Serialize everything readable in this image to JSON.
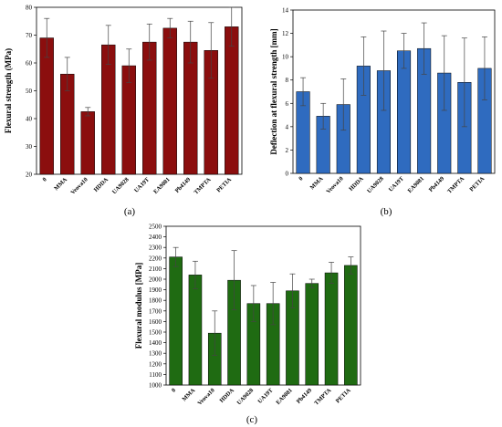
{
  "chart_data": [
    {
      "type": "bar",
      "panel_label": "(a)",
      "categories": [
        "0",
        "MMA",
        "Veova10",
        "HDDA",
        "UA9028",
        "UA19T",
        "EA9081",
        "Pb4149",
        "TMPTA",
        "PETIA"
      ],
      "values": [
        69,
        56,
        42.5,
        66.5,
        59,
        67.5,
        72.5,
        67.5,
        64.5,
        73
      ],
      "errors": [
        7,
        6,
        1.5,
        7,
        6,
        6.5,
        3.5,
        7.5,
        10,
        7
      ],
      "ylabel": "Flexural strength (MPa)",
      "xlabel": "",
      "ylim": [
        20,
        80
      ],
      "yticks": [
        20,
        30,
        40,
        50,
        60,
        70,
        80
      ],
      "bar_color": "#8b0e0e",
      "grid": false
    },
    {
      "type": "bar",
      "panel_label": "(b)",
      "categories": [
        "0",
        "MMA",
        "Veova10",
        "HDDA",
        "UA9028",
        "UA19T",
        "EA9081",
        "Pb4149",
        "TMPTA",
        "PETIA"
      ],
      "values": [
        7,
        4.9,
        5.9,
        9.2,
        8.8,
        10.5,
        10.7,
        8.6,
        7.8,
        9
      ],
      "errors": [
        1.2,
        1.1,
        2.2,
        2.5,
        3.4,
        1.5,
        2.2,
        3.2,
        3.8,
        2.7
      ],
      "ylabel": "Deflection at flexural strength [mm]",
      "xlabel": "",
      "ylim": [
        0,
        14
      ],
      "yticks": [
        0,
        2,
        4,
        6,
        8,
        10,
        12,
        14
      ],
      "bar_color": "#2f6bbf",
      "grid": false
    },
    {
      "type": "bar",
      "panel_label": "(c)",
      "categories": [
        "0",
        "MMA",
        "Veova10",
        "HDDA",
        "UA9028",
        "UA19T",
        "EA9081",
        "Pb4149",
        "TMPTA",
        "PETIA"
      ],
      "values": [
        2210,
        2040,
        1490,
        1990,
        1770,
        1770,
        1890,
        1960,
        2060,
        2130
      ],
      "errors": [
        90,
        130,
        210,
        280,
        170,
        200,
        160,
        40,
        100,
        80
      ],
      "ylabel": "Flexural modulus [MPa]",
      "xlabel": "",
      "ylim": [
        1000,
        2500
      ],
      "yticks": [
        1000,
        1100,
        1200,
        1300,
        1400,
        1500,
        1600,
        1700,
        1800,
        1900,
        2000,
        2100,
        2200,
        2300,
        2400,
        2500
      ],
      "bar_color": "#1f6b12",
      "grid": false
    }
  ]
}
